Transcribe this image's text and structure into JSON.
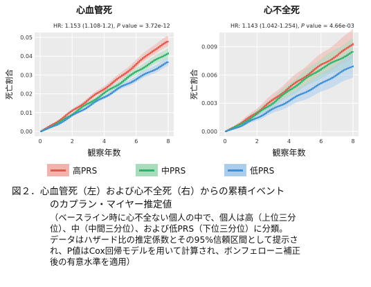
{
  "panels": [
    {
      "title": "心血管死",
      "stat_prefix": "HR: 1.153 (1.108-1.2), ",
      "stat_p": "P",
      "stat_suffix": " value = 3.72e-12"
    },
    {
      "title": "心不全死",
      "stat_prefix": "HR: 1.143 (1.042-1.254), ",
      "stat_p": "P",
      "stat_suffix": " value = 4.66e-03"
    }
  ],
  "legend": [
    {
      "label": "高PRS",
      "color": "#E8574A",
      "band": "#F3B3AC"
    },
    {
      "label": "中PRS",
      "color": "#2DB36A",
      "band": "#A8DDBC"
    },
    {
      "label": "低PRS",
      "color": "#3E8FD6",
      "band": "#A9CDEC"
    }
  ],
  "caption": {
    "line1": "図２．心血管死（左）および心不全死（右）からの累積イベント",
    "line2": "のカプラン・マイヤー推定値",
    "note": [
      "（ベースライン時に心不全ない個人の中で、個人は高（上位三分",
      "位）、中（中間三分位）、および低PRS（下位三分位）に分類。",
      "データはハザード比の推定係数とその95%信頼区間として提示さ",
      "れ、P値はCox回帰モデルを用いて計算され、ボンフェローニ補正",
      "後の有意水準を適用）"
    ]
  },
  "chart_data": [
    {
      "type": "line",
      "title": "心血管死",
      "xlabel": "観察年数",
      "ylabel": "死亡割合",
      "xlim": [
        0,
        8
      ],
      "ylim": [
        0,
        0.05
      ],
      "xticks": [
        0,
        2,
        4,
        6,
        8
      ],
      "yticks": [
        0.0,
        0.01,
        0.02,
        0.03,
        0.04,
        0.05
      ],
      "ytick_labels": [
        "0.00",
        "0.01",
        "0.02",
        "0.03",
        "0.04",
        "0.05"
      ],
      "x": [
        0,
        1,
        2,
        3,
        4,
        5,
        6,
        7,
        8
      ],
      "series": [
        {
          "name": "高PRS",
          "values": [
            0,
            0.005,
            0.011,
            0.017,
            0.023,
            0.029,
            0.036,
            0.043,
            0.048
          ],
          "band": 0.002
        },
        {
          "name": "中PRS",
          "values": [
            0,
            0.004,
            0.0095,
            0.015,
            0.0205,
            0.026,
            0.032,
            0.037,
            0.042
          ],
          "band": 0.0018
        },
        {
          "name": "低PRS",
          "values": [
            0,
            0.0035,
            0.0085,
            0.0135,
            0.0185,
            0.0235,
            0.028,
            0.0325,
            0.037
          ],
          "band": 0.0016
        }
      ]
    },
    {
      "type": "line",
      "title": "心不全死",
      "xlabel": "観察年数",
      "ylabel": "死亡割合",
      "xlim": [
        0,
        8
      ],
      "ylim": [
        0,
        0.01
      ],
      "xticks": [
        0,
        2,
        4,
        6,
        8
      ],
      "yticks": [
        0.0,
        0.003,
        0.006,
        0.009
      ],
      "ytick_labels": [
        "0.000",
        "0.003",
        "0.006",
        "0.009"
      ],
      "x": [
        0,
        1,
        2,
        3,
        4,
        5,
        6,
        7,
        8
      ],
      "series": [
        {
          "name": "高PRS",
          "values": [
            0,
            0.0009,
            0.0021,
            0.0034,
            0.0047,
            0.0059,
            0.0071,
            0.0081,
            0.0094
          ],
          "band": 0.0011
        },
        {
          "name": "中PRS",
          "values": [
            0,
            0.0008,
            0.0019,
            0.0031,
            0.0044,
            0.0056,
            0.0067,
            0.0076,
            0.0085
          ],
          "band": 0.001
        },
        {
          "name": "低PRS",
          "values": [
            0,
            0.0006,
            0.0015,
            0.0024,
            0.0033,
            0.0042,
            0.0051,
            0.0061,
            0.007
          ],
          "band": 0.0009
        }
      ]
    }
  ]
}
